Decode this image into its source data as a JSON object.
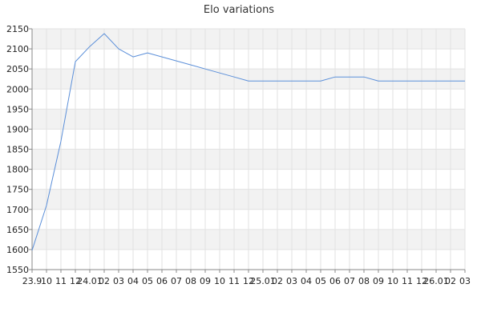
{
  "chart_data": {
    "type": "line",
    "title": "Elo variations",
    "xlabel": "",
    "ylabel": "",
    "ylim": [
      1550,
      2150
    ],
    "yticks": [
      1550,
      1600,
      1650,
      1700,
      1750,
      1800,
      1850,
      1900,
      1950,
      2000,
      2050,
      2100,
      2150
    ],
    "grid": true,
    "x": [
      "23.9",
      "10",
      "11",
      "12",
      "24.01",
      "02",
      "03",
      "04",
      "05",
      "06",
      "07",
      "08",
      "09",
      "10",
      "11",
      "12",
      "25.01",
      "02",
      "03",
      "04",
      "05",
      "06",
      "07",
      "08",
      "09",
      "10",
      "11",
      "12",
      "26.01",
      "02",
      "03"
    ],
    "series": [
      {
        "color": "#5b8fd9",
        "values": [
          1598,
          1710,
          1870,
          2068,
          2106,
          2138,
          2100,
          2080,
          2090,
          2080,
          2070,
          2060,
          2050,
          2040,
          2030,
          2020,
          2020,
          2020,
          2020,
          2020,
          2020,
          2030,
          2030,
          2030,
          2020,
          2020,
          2020,
          2020,
          2020,
          2020,
          2020
        ]
      }
    ],
    "colors": {
      "band": "#f2f2f2",
      "grid": "#e2e2e2",
      "axis": "#888888"
    }
  }
}
